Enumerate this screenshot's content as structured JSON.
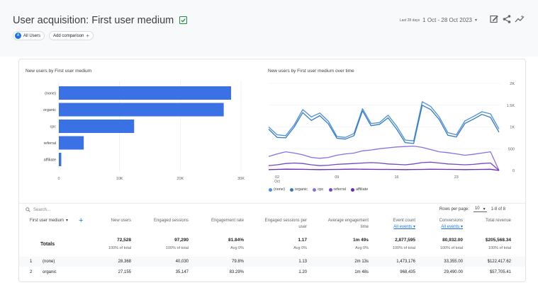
{
  "header": {
    "title": "User acquisition: First user medium",
    "date_prefix": "Last 28 days",
    "date_range": "1 Oct - 28 Oct 2023",
    "caret": "▾"
  },
  "chips": {
    "all_users_letter": "A",
    "all_users": "All Users",
    "add_comparison": "Add comparison",
    "plus": "+"
  },
  "bar_panel": {
    "title": "New users by First user medium"
  },
  "line_panel": {
    "title": "New users by First user medium over time"
  },
  "colors": {
    "bar": "#3a72e6",
    "none": "#4a90d9",
    "organic": "#3578c8",
    "cpc": "#8c6ee4",
    "referral": "#7346c9",
    "affiliate": "#6a2ab4"
  },
  "chart_data": [
    {
      "type": "bar",
      "orientation": "horizontal",
      "title": "New users by First user medium",
      "categories": [
        "(none)",
        "organic",
        "cpc",
        "referral",
        "affiliate"
      ],
      "values": [
        28368,
        27155,
        12400,
        4100,
        400
      ],
      "xlim": [
        0,
        30000
      ],
      "xticks": [
        "0",
        "10K",
        "20K",
        "30K"
      ],
      "xtick_values": [
        0,
        10000,
        20000,
        30000
      ]
    },
    {
      "type": "line",
      "title": "New users by First user medium over time",
      "x": [
        1,
        2,
        3,
        4,
        5,
        6,
        7,
        8,
        9,
        10,
        11,
        12,
        13,
        14,
        15,
        16,
        17,
        18,
        19,
        20,
        21,
        22,
        23,
        24,
        25,
        26,
        27,
        28
      ],
      "x_ticks": [
        {
          "value": 2,
          "label": "02",
          "sub": "Oct"
        },
        {
          "value": 9,
          "label": "09",
          "sub": ""
        },
        {
          "value": 16,
          "label": "16",
          "sub": ""
        },
        {
          "value": 23,
          "label": "23",
          "sub": ""
        }
      ],
      "ylim": [
        0,
        2000
      ],
      "yticks": [
        "0",
        "500",
        "1K",
        "1.5K",
        "2K"
      ],
      "ytick_values": [
        0,
        500,
        1000,
        1500,
        2000
      ],
      "y_axis_side": "right",
      "legend_placement": "bottom-left",
      "series": [
        {
          "name": "(none)",
          "values": [
            1000,
            820,
            800,
            1050,
            1400,
            1230,
            1320,
            1130,
            780,
            760,
            850,
            1420,
            1080,
            1100,
            1270,
            1020,
            700,
            680,
            1580,
            1470,
            1230,
            870,
            820,
            1140,
            1240,
            1350,
            1300,
            950
          ]
        },
        {
          "name": "organic",
          "values": [
            950,
            760,
            750,
            1000,
            1330,
            1150,
            1260,
            1070,
            740,
            720,
            800,
            1370,
            1030,
            1060,
            1210,
            950,
            640,
            620,
            1500,
            1400,
            1170,
            810,
            770,
            1080,
            1180,
            1290,
            1220,
            880
          ]
        },
        {
          "name": "cpc",
          "values": [
            320,
            380,
            430,
            400,
            360,
            300,
            280,
            300,
            350,
            380,
            400,
            450,
            470,
            500,
            520,
            540,
            550,
            560,
            530,
            480,
            430,
            410,
            380,
            350,
            370,
            400,
            430,
            0
          ]
        },
        {
          "name": "referral",
          "values": [
            110,
            130,
            160,
            170,
            160,
            130,
            110,
            120,
            140,
            150,
            160,
            170,
            180,
            170,
            150,
            140,
            130,
            150,
            180,
            190,
            170,
            150,
            140,
            130,
            140,
            160,
            170,
            0
          ]
        },
        {
          "name": "affiliate",
          "values": [
            20,
            25,
            30,
            28,
            26,
            22,
            20,
            22,
            25,
            28,
            30,
            28,
            26,
            25,
            24,
            22,
            20,
            22,
            25,
            28,
            26,
            24,
            22,
            20,
            22,
            25,
            28,
            0
          ]
        }
      ]
    }
  ],
  "table": {
    "search_placeholder": "Search...",
    "rows_per_page_label": "Rows per page:",
    "rows_per_page": "10",
    "pagination": "1-8 of 8",
    "dimension_header": "First user medium",
    "dimension_caret": "▾",
    "add_dimension": "+",
    "columns": [
      {
        "line1": "New users",
        "line2": ""
      },
      {
        "line1": "Engaged sessions",
        "line2": ""
      },
      {
        "line1": "Engagement rate",
        "line2": ""
      },
      {
        "line1": "Engaged sessions per",
        "line2": "user"
      },
      {
        "line1": "Average engagement",
        "line2": "time"
      },
      {
        "line1": "Event count",
        "sub": "All events ▾"
      },
      {
        "line1": "Conversions",
        "sub": "All events ▾"
      },
      {
        "line1": "Total revenue",
        "line2": ""
      }
    ],
    "totals_label": "Totals",
    "totals": [
      {
        "value": "72,528",
        "sub": "100% of total"
      },
      {
        "value": "97,290",
        "sub": "100% of total"
      },
      {
        "value": "81.84%",
        "sub": "Avg 0%"
      },
      {
        "value": "1.17",
        "sub": "Avg 0%"
      },
      {
        "value": "1m 49s",
        "sub": "Avg 0%"
      },
      {
        "value": "2,877,595",
        "sub": "100% of total"
      },
      {
        "value": "80,932.00",
        "sub": "100% of total"
      },
      {
        "value": "$205,568.34",
        "sub": "100% of total"
      }
    ],
    "rows": [
      {
        "num": "1",
        "name": "(none)",
        "values": [
          "28,368",
          "40,030",
          "79.8%",
          "1.13",
          "2m 13s",
          "1,473,176",
          "33,355.00",
          "$122,417.62"
        ]
      },
      {
        "num": "2",
        "name": "organic",
        "values": [
          "27,155",
          "35,147",
          "83.29%",
          "1.20",
          "1m 48s",
          "968,435",
          "29,490.00",
          "$57,705.41"
        ]
      }
    ]
  }
}
